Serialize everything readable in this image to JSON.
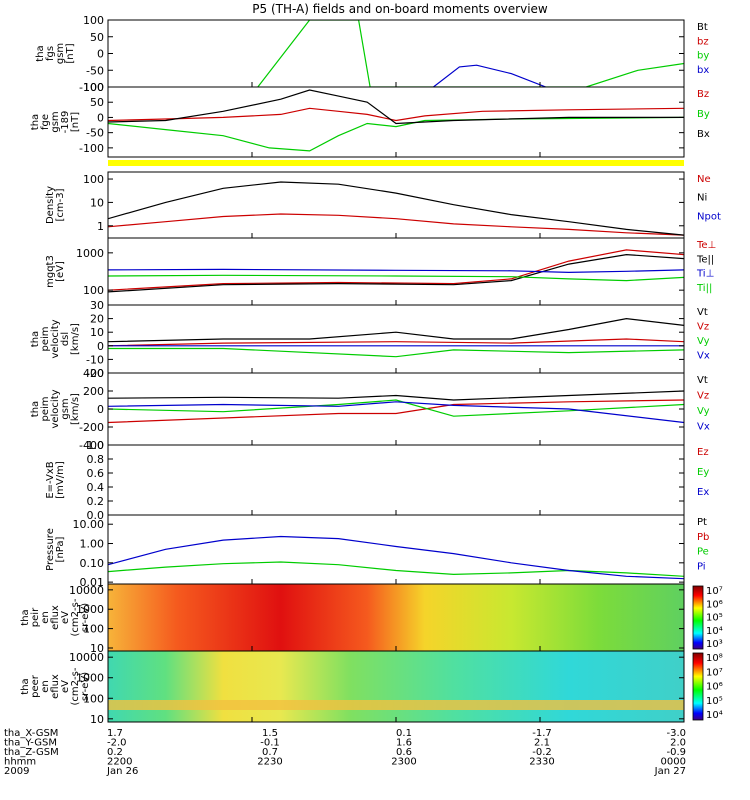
{
  "title": "P5 (TH-A) fields and on-board moments overview",
  "chart_data": [
    {
      "type": "line",
      "ylabel": [
        "tha",
        "fgs",
        "gsm",
        "[nT]"
      ],
      "ylim": [
        -100,
        100
      ],
      "ticks": [
        "100",
        "50",
        "0",
        "-50",
        "-100"
      ],
      "tickvals": [
        100,
        50,
        0,
        -50,
        -100
      ],
      "series": [
        {
          "name": "Bt",
          "color": "#000000",
          "points": []
        },
        {
          "name": "bz",
          "color": "#cc0000",
          "points": []
        },
        {
          "name": "by",
          "color": "#00cc00",
          "points": [
            [
              0.26,
              -100
            ],
            [
              0.35,
              100
            ],
            [
              0.435,
              100
            ],
            [
              0.455,
              -100
            ],
            [
              0.83,
              -100
            ],
            [
              0.92,
              -50
            ],
            [
              1.0,
              -30
            ]
          ]
        },
        {
          "name": "bx",
          "color": "#0000cc",
          "points": [
            [
              0.565,
              -100
            ],
            [
              0.61,
              -40
            ],
            [
              0.64,
              -35
            ],
            [
              0.7,
              -60
            ],
            [
              0.76,
              -100
            ]
          ]
        }
      ]
    },
    {
      "type": "line",
      "ylabel": [
        "tha",
        "fge",
        "gsm",
        "-189",
        "[nT]"
      ],
      "ylim": [
        -130,
        100
      ],
      "ticks": [
        "100",
        "50",
        "0",
        "-50",
        "-100"
      ],
      "tickvals": [
        100,
        50,
        0,
        -50,
        -100
      ],
      "series": [
        {
          "name": "Bz",
          "color": "#cc0000",
          "points": [
            [
              0,
              -10
            ],
            [
              0.1,
              -5
            ],
            [
              0.2,
              0
            ],
            [
              0.3,
              10
            ],
            [
              0.35,
              30
            ],
            [
              0.4,
              20
            ],
            [
              0.45,
              10
            ],
            [
              0.5,
              -10
            ],
            [
              0.55,
              5
            ],
            [
              0.65,
              20
            ],
            [
              0.8,
              25
            ],
            [
              1.0,
              30
            ]
          ]
        },
        {
          "name": "By",
          "color": "#00cc00",
          "points": [
            [
              0,
              -20
            ],
            [
              0.1,
              -40
            ],
            [
              0.2,
              -60
            ],
            [
              0.28,
              -100
            ],
            [
              0.35,
              -110
            ],
            [
              0.4,
              -60
            ],
            [
              0.45,
              -20
            ],
            [
              0.5,
              -30
            ],
            [
              0.55,
              -10
            ],
            [
              0.7,
              -5
            ],
            [
              1.0,
              0
            ]
          ]
        },
        {
          "name": "Bx",
          "color": "#000000",
          "points": [
            [
              0,
              -15
            ],
            [
              0.1,
              -10
            ],
            [
              0.2,
              20
            ],
            [
              0.3,
              60
            ],
            [
              0.35,
              90
            ],
            [
              0.4,
              70
            ],
            [
              0.45,
              50
            ],
            [
              0.5,
              -20
            ],
            [
              0.6,
              -10
            ],
            [
              0.8,
              0
            ],
            [
              1.0,
              0
            ]
          ]
        }
      ]
    },
    {
      "type": "line",
      "ylabel": [
        "Density",
        "[cm-3]"
      ],
      "scale": "log",
      "ylim": [
        0.3,
        200
      ],
      "ticks": [
        "100",
        "10",
        "1"
      ],
      "tickvals": [
        100,
        10,
        1
      ],
      "series": [
        {
          "name": "Ne",
          "color": "#cc0000",
          "points": [
            [
              0,
              0.9
            ],
            [
              0.1,
              1.5
            ],
            [
              0.2,
              2.5
            ],
            [
              0.3,
              3.2
            ],
            [
              0.4,
              2.8
            ],
            [
              0.5,
              2
            ],
            [
              0.6,
              1.2
            ],
            [
              0.7,
              0.9
            ],
            [
              0.8,
              0.7
            ],
            [
              0.9,
              0.5
            ],
            [
              1.0,
              0.4
            ]
          ]
        },
        {
          "name": "Ni",
          "color": "#000000",
          "points": [
            [
              0,
              2
            ],
            [
              0.1,
              10
            ],
            [
              0.2,
              40
            ],
            [
              0.3,
              75
            ],
            [
              0.4,
              60
            ],
            [
              0.5,
              25
            ],
            [
              0.6,
              8
            ],
            [
              0.7,
              3
            ],
            [
              0.8,
              1.5
            ],
            [
              0.9,
              0.7
            ],
            [
              1.0,
              0.4
            ]
          ]
        },
        {
          "name": "Npot",
          "color": "#0000cc",
          "points": []
        }
      ]
    },
    {
      "type": "line",
      "ylabel": [
        "mgqt3",
        "[eV]"
      ],
      "scale": "log",
      "ylim": [
        40,
        2500
      ],
      "ticks": [
        "1000",
        "100"
      ],
      "tickvals": [
        1000,
        100
      ],
      "series": [
        {
          "name": "Te⊥",
          "color": "#cc0000",
          "points": [
            [
              0,
              100
            ],
            [
              0.2,
              150
            ],
            [
              0.4,
              160
            ],
            [
              0.6,
              150
            ],
            [
              0.7,
              200
            ],
            [
              0.8,
              600
            ],
            [
              0.9,
              1200
            ],
            [
              1.0,
              900
            ]
          ]
        },
        {
          "name": "Te||",
          "color": "#000000",
          "points": [
            [
              0,
              90
            ],
            [
              0.2,
              140
            ],
            [
              0.4,
              150
            ],
            [
              0.6,
              140
            ],
            [
              0.7,
              180
            ],
            [
              0.8,
              500
            ],
            [
              0.9,
              900
            ],
            [
              1.0,
              700
            ]
          ]
        },
        {
          "name": "Ti⊥",
          "color": "#0000cc",
          "points": [
            [
              0,
              350
            ],
            [
              0.2,
              360
            ],
            [
              0.5,
              340
            ],
            [
              0.7,
              330
            ],
            [
              0.8,
              300
            ],
            [
              0.9,
              320
            ],
            [
              1.0,
              350
            ]
          ]
        },
        {
          "name": "Ti||",
          "color": "#00cc00",
          "points": [
            [
              0,
              240
            ],
            [
              0.2,
              250
            ],
            [
              0.5,
              240
            ],
            [
              0.7,
              230
            ],
            [
              0.8,
              200
            ],
            [
              0.9,
              180
            ],
            [
              1.0,
              220
            ]
          ]
        }
      ]
    },
    {
      "type": "line",
      "ylabel": [
        "tha",
        "peim",
        "velocity",
        "dsl",
        "[km/s]"
      ],
      "ylim": [
        -20,
        30
      ],
      "ticks": [
        "30",
        "20",
        "10",
        "0",
        "-10",
        "-20"
      ],
      "tickvals": [
        30,
        20,
        10,
        0,
        -10,
        -20
      ],
      "series": [
        {
          "name": "Vt",
          "color": "#000000",
          "points": [
            [
              0,
              3
            ],
            [
              0.2,
              5
            ],
            [
              0.35,
              5
            ],
            [
              0.5,
              10
            ],
            [
              0.6,
              5
            ],
            [
              0.7,
              5
            ],
            [
              0.8,
              12
            ],
            [
              0.9,
              20
            ],
            [
              1.0,
              15
            ]
          ]
        },
        {
          "name": "Vz",
          "color": "#cc0000",
          "points": [
            [
              0,
              0
            ],
            [
              0.2,
              2
            ],
            [
              0.5,
              3
            ],
            [
              0.7,
              2
            ],
            [
              0.9,
              5
            ],
            [
              1.0,
              3
            ]
          ]
        },
        {
          "name": "Vy",
          "color": "#00cc00",
          "points": [
            [
              0,
              -2
            ],
            [
              0.2,
              -2
            ],
            [
              0.5,
              -8
            ],
            [
              0.6,
              -3
            ],
            [
              0.8,
              -5
            ],
            [
              1.0,
              -3
            ]
          ]
        },
        {
          "name": "Vx",
          "color": "#0000cc",
          "points": [
            [
              0,
              0
            ],
            [
              0.2,
              0
            ],
            [
              0.5,
              0
            ],
            [
              0.8,
              0
            ],
            [
              1.0,
              0
            ]
          ]
        }
      ]
    },
    {
      "type": "line",
      "ylabel": [
        "tha",
        "peim",
        "velocity",
        "gsm",
        "[km/s]"
      ],
      "ylim": [
        -400,
        400
      ],
      "ticks": [
        "400",
        "200",
        "0",
        "-200",
        "-400"
      ],
      "tickvals": [
        400,
        200,
        0,
        -200,
        -400
      ],
      "series": [
        {
          "name": "Vt",
          "color": "#000000",
          "points": [
            [
              0,
              120
            ],
            [
              0.2,
              130
            ],
            [
              0.4,
              120
            ],
            [
              0.5,
              150
            ],
            [
              0.6,
              100
            ],
            [
              0.8,
              150
            ],
            [
              1.0,
              200
            ]
          ]
        },
        {
          "name": "Vz",
          "color": "#cc0000",
          "points": [
            [
              0,
              -150
            ],
            [
              0.2,
              -100
            ],
            [
              0.4,
              -50
            ],
            [
              0.5,
              -50
            ],
            [
              0.6,
              50
            ],
            [
              0.8,
              80
            ],
            [
              1.0,
              100
            ]
          ]
        },
        {
          "name": "Vy",
          "color": "#00cc00",
          "points": [
            [
              0,
              0
            ],
            [
              0.2,
              -30
            ],
            [
              0.4,
              50
            ],
            [
              0.5,
              100
            ],
            [
              0.6,
              -80
            ],
            [
              0.8,
              -20
            ],
            [
              1.0,
              50
            ]
          ]
        },
        {
          "name": "Vx",
          "color": "#0000cc",
          "points": [
            [
              0,
              30
            ],
            [
              0.2,
              50
            ],
            [
              0.4,
              30
            ],
            [
              0.5,
              80
            ],
            [
              0.6,
              40
            ],
            [
              0.8,
              0
            ],
            [
              1.0,
              -150
            ]
          ]
        }
      ]
    },
    {
      "type": "line",
      "ylabel": [
        "E=-VxB",
        "[mV/m]"
      ],
      "ylim": [
        0,
        1
      ],
      "ticks": [
        "1.0",
        "0.8",
        "0.6",
        "0.4",
        "0.2",
        "0.0"
      ],
      "tickvals": [
        1.0,
        0.8,
        0.6,
        0.4,
        0.2,
        0.0
      ],
      "series": [
        {
          "name": "Ez",
          "color": "#cc0000",
          "points": []
        },
        {
          "name": "Ey",
          "color": "#00cc00",
          "points": []
        },
        {
          "name": "Ex",
          "color": "#0000cc",
          "points": []
        }
      ]
    },
    {
      "type": "line",
      "ylabel": [
        "Pressure",
        "[nPa]"
      ],
      "scale": "log",
      "ylim": [
        0.008,
        30
      ],
      "ticks": [
        "10.00",
        "1.00",
        "0.10",
        "0.01"
      ],
      "tickvals": [
        10,
        1,
        0.1,
        0.01
      ],
      "series": [
        {
          "name": "Pt",
          "color": "#000000",
          "points": []
        },
        {
          "name": "Pb",
          "color": "#cc0000",
          "points": []
        },
        {
          "name": "Pe",
          "color": "#00cc00",
          "points": [
            [
              0,
              0.035
            ],
            [
              0.1,
              0.06
            ],
            [
              0.2,
              0.09
            ],
            [
              0.3,
              0.11
            ],
            [
              0.4,
              0.08
            ],
            [
              0.5,
              0.04
            ],
            [
              0.6,
              0.025
            ],
            [
              0.7,
              0.03
            ],
            [
              0.8,
              0.04
            ],
            [
              0.9,
              0.03
            ],
            [
              1.0,
              0.02
            ]
          ]
        },
        {
          "name": "Pi",
          "color": "#0000cc",
          "points": [
            [
              0,
              0.08
            ],
            [
              0.1,
              0.5
            ],
            [
              0.2,
              1.5
            ],
            [
              0.3,
              2.3
            ],
            [
              0.4,
              1.8
            ],
            [
              0.5,
              0.7
            ],
            [
              0.6,
              0.3
            ],
            [
              0.7,
              0.1
            ],
            [
              0.8,
              0.04
            ],
            [
              0.9,
              0.02
            ],
            [
              1.0,
              0.015
            ]
          ]
        }
      ]
    },
    {
      "type": "heatmap",
      "ylabel": [
        "tha",
        "peir",
        "en",
        "eflux",
        "eV",
        "(cm2-s-",
        "sr-eV)"
      ],
      "ticks": [
        "10000",
        "1000",
        "100",
        "10"
      ],
      "tickvals": [
        10000,
        1000,
        100,
        10
      ],
      "ylim": [
        7,
        20000
      ],
      "scale": "log",
      "colorbar": [
        "10⁷",
        "10⁶",
        "10⁵",
        "10⁴",
        "10³"
      ]
    },
    {
      "type": "heatmap",
      "ylabel": [
        "tha",
        "peer",
        "en",
        "eflux",
        "eV",
        "(cm2-s-",
        "sr-eV)"
      ],
      "ticks": [
        "10000",
        "1000",
        "100",
        "10"
      ],
      "tickvals": [
        10000,
        1000,
        100,
        10
      ],
      "ylim": [
        7,
        20000
      ],
      "scale": "log",
      "colorbar": [
        "10⁸",
        "10⁷",
        "10⁶",
        "10⁵",
        "10⁴"
      ]
    }
  ],
  "xaxis": {
    "rows": [
      {
        "label": "tha_X-GSM",
        "values": [
          "1.7",
          "1.5",
          "0.1",
          "-1.7",
          "-3.0"
        ]
      },
      {
        "label": "tha_Y-GSM",
        "values": [
          "-2.0",
          "-0.1",
          "1.6",
          "2.1",
          "2.0"
        ]
      },
      {
        "label": "tha_Z-GSM",
        "values": [
          "0.2",
          "0.7",
          "0.6",
          "-0.2",
          "-0.9"
        ]
      },
      {
        "label": "hhmm",
        "values": [
          "2200",
          "2230",
          "2300",
          "2330",
          "0000"
        ]
      },
      {
        "label": "2009",
        "values": [
          "Jan 26",
          "",
          "",
          "",
          "Jan 27"
        ]
      }
    ]
  }
}
